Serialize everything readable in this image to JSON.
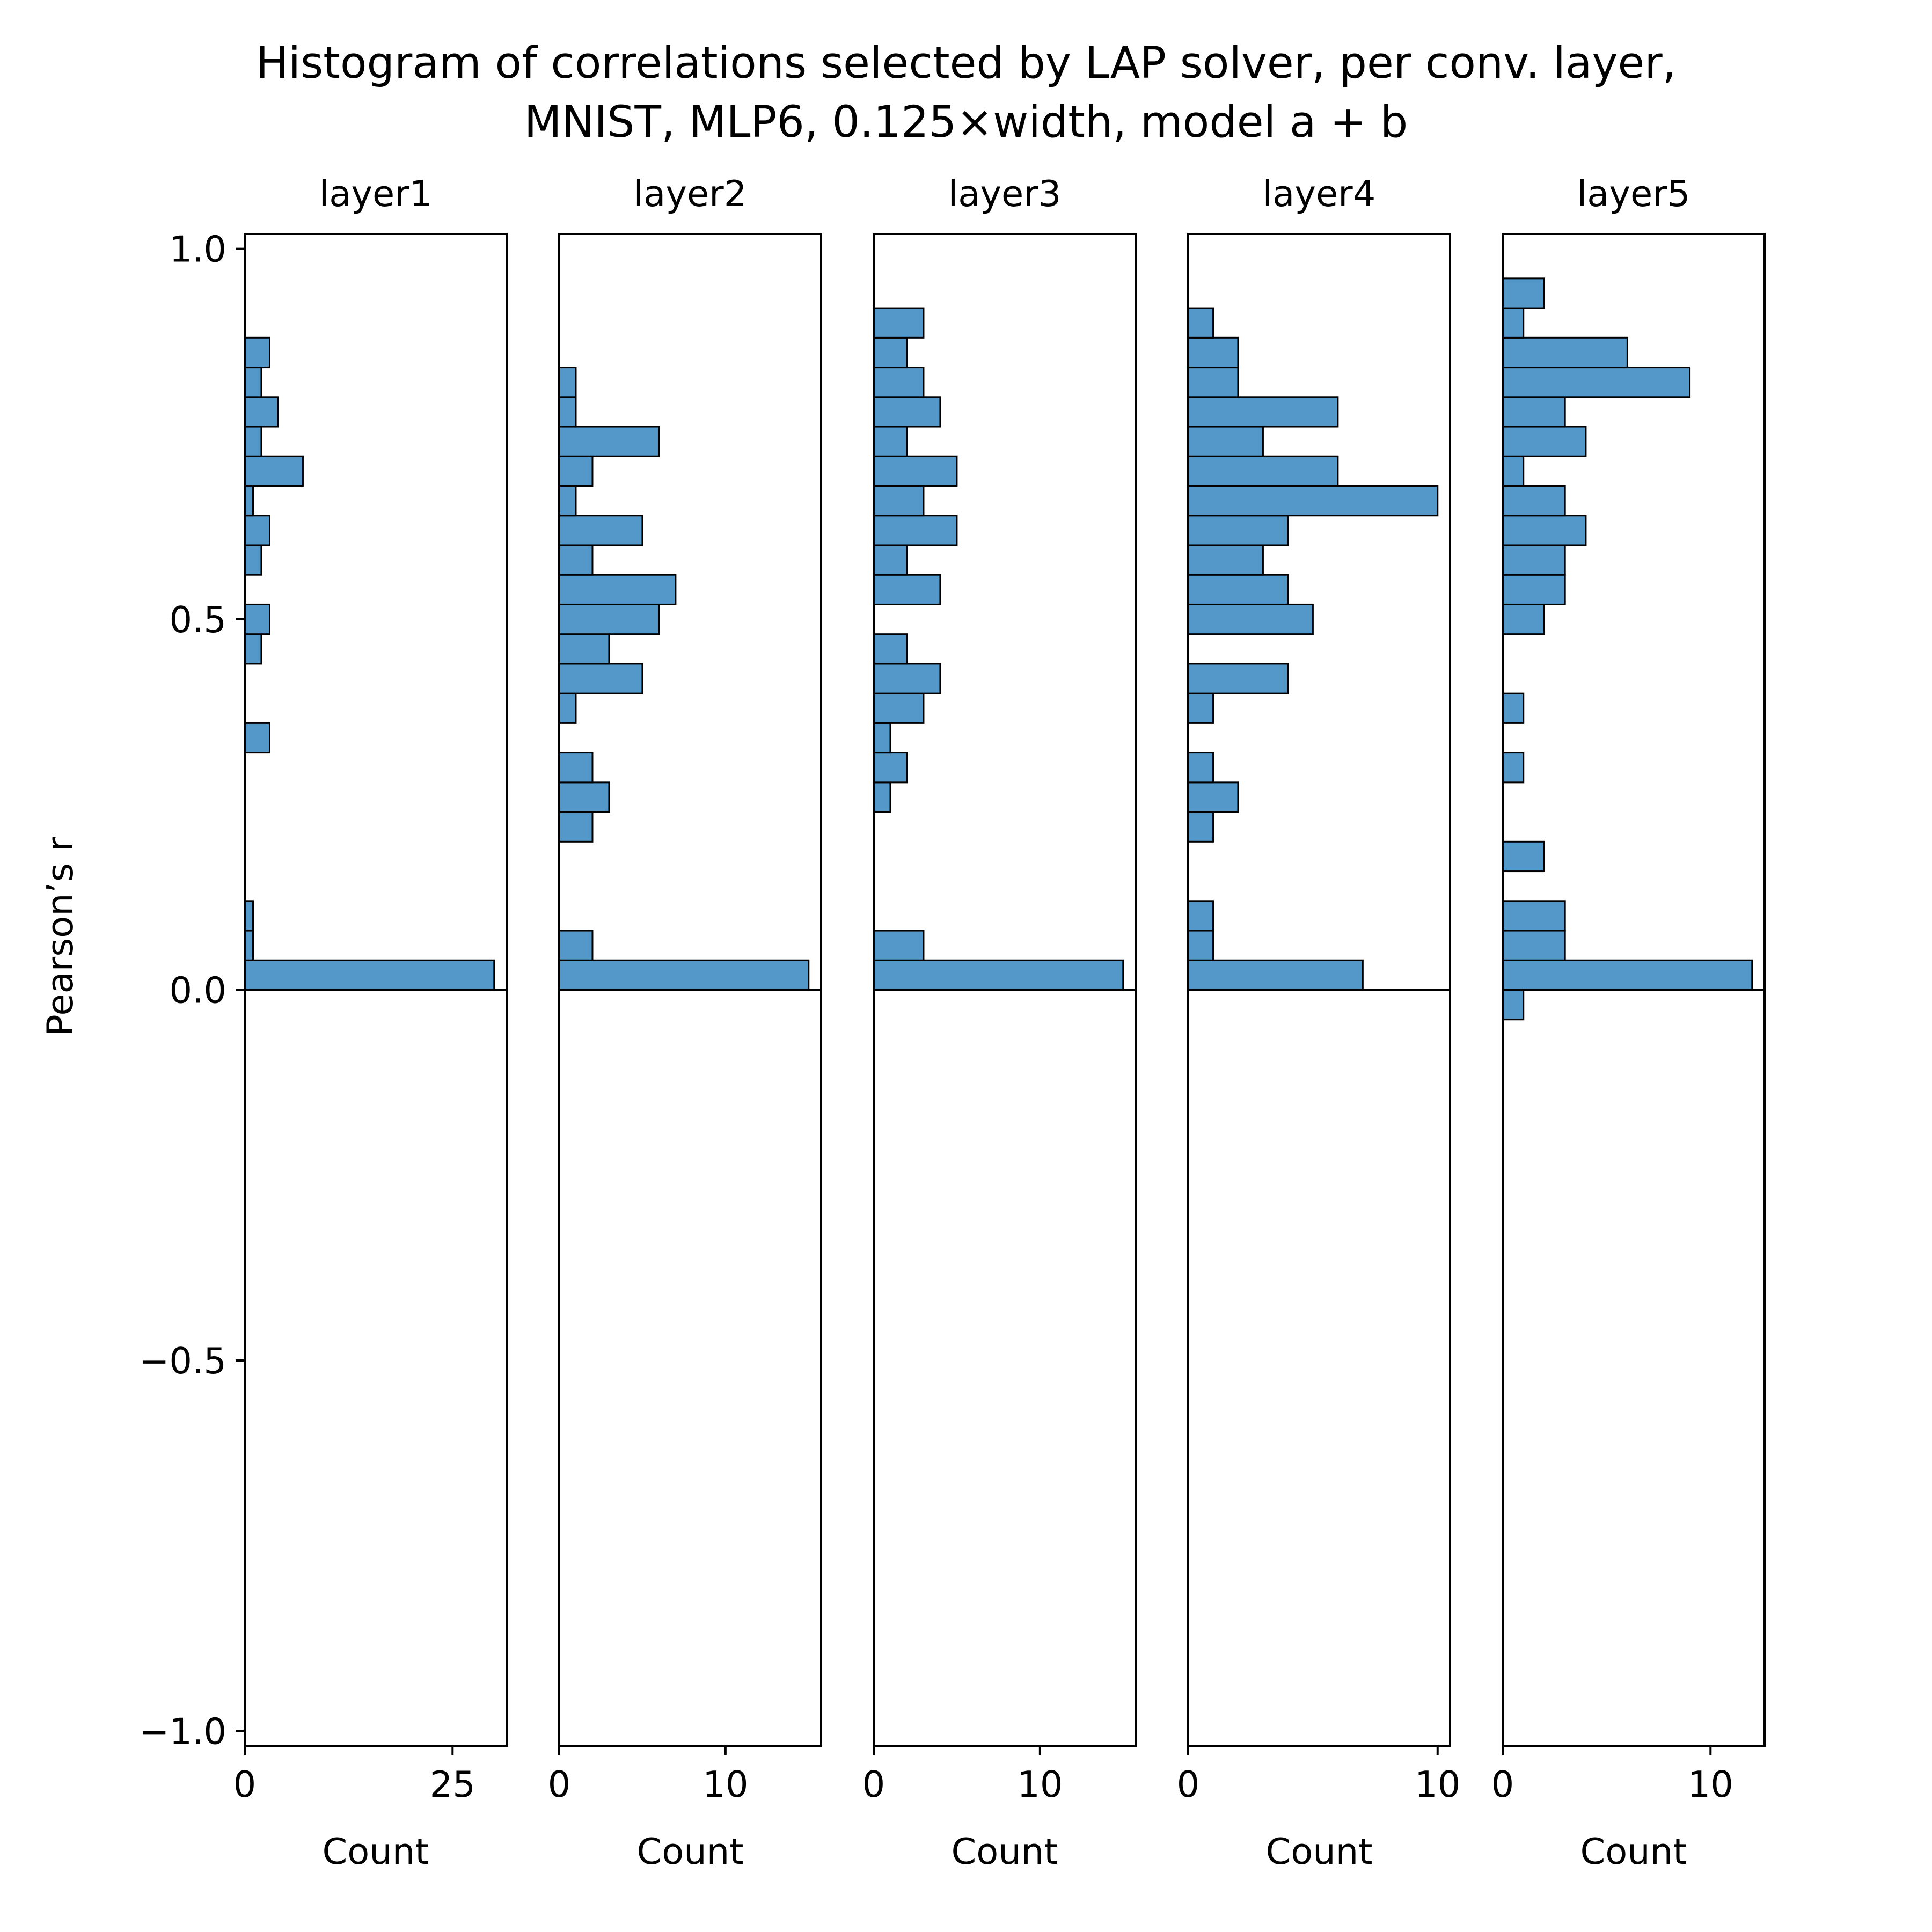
{
  "chart_data": {
    "type": "bar",
    "orientation": "horizontal",
    "title_lines": [
      "Histogram of correlations selected by LAP solver, per conv. layer,",
      "MNIST, MLP6, 0.125×width, model a + b"
    ],
    "ylabel": "Pearson’s r",
    "xlabel": "Count",
    "ylim": [
      -1.02,
      1.02
    ],
    "yticks": [
      1.0,
      0.5,
      0.0,
      -0.5,
      -1.0
    ],
    "ytick_labels": [
      "1.0",
      "0.5",
      "0.0",
      "−0.5",
      "−1.0"
    ],
    "bin_width": 0.04,
    "bar_color": "#5497c9",
    "edge_color": "#000000",
    "grid": false,
    "panels": [
      {
        "title": "layer1",
        "xlim": [
          0,
          31.5
        ],
        "xticks": [
          0,
          25
        ],
        "xtick_labels": [
          "0",
          "25"
        ],
        "bins": [
          {
            "y": 0.0,
            "count": 30
          },
          {
            "y": 0.04,
            "count": 1
          },
          {
            "y": 0.08,
            "count": 1
          },
          {
            "y": 0.32,
            "count": 3
          },
          {
            "y": 0.44,
            "count": 2
          },
          {
            "y": 0.48,
            "count": 3
          },
          {
            "y": 0.56,
            "count": 2
          },
          {
            "y": 0.6,
            "count": 3
          },
          {
            "y": 0.64,
            "count": 1
          },
          {
            "y": 0.68,
            "count": 7
          },
          {
            "y": 0.72,
            "count": 2
          },
          {
            "y": 0.76,
            "count": 4
          },
          {
            "y": 0.8,
            "count": 2
          },
          {
            "y": 0.84,
            "count": 3
          }
        ]
      },
      {
        "title": "layer2",
        "xlim": [
          0,
          15.75
        ],
        "xticks": [
          0,
          10
        ],
        "xtick_labels": [
          "0",
          "10"
        ],
        "bins": [
          {
            "y": 0.0,
            "count": 15
          },
          {
            "y": 0.04,
            "count": 2
          },
          {
            "y": 0.2,
            "count": 2
          },
          {
            "y": 0.24,
            "count": 3
          },
          {
            "y": 0.28,
            "count": 2
          },
          {
            "y": 0.36,
            "count": 1
          },
          {
            "y": 0.4,
            "count": 5
          },
          {
            "y": 0.44,
            "count": 3
          },
          {
            "y": 0.48,
            "count": 6
          },
          {
            "y": 0.52,
            "count": 7
          },
          {
            "y": 0.56,
            "count": 2
          },
          {
            "y": 0.6,
            "count": 5
          },
          {
            "y": 0.64,
            "count": 1
          },
          {
            "y": 0.68,
            "count": 2
          },
          {
            "y": 0.72,
            "count": 6
          },
          {
            "y": 0.76,
            "count": 1
          },
          {
            "y": 0.8,
            "count": 1
          }
        ]
      },
      {
        "title": "layer3",
        "xlim": [
          0,
          15.75
        ],
        "xticks": [
          0,
          10
        ],
        "xtick_labels": [
          "0",
          "10"
        ],
        "bins": [
          {
            "y": 0.0,
            "count": 15
          },
          {
            "y": 0.04,
            "count": 3
          },
          {
            "y": 0.24,
            "count": 1
          },
          {
            "y": 0.28,
            "count": 2
          },
          {
            "y": 0.32,
            "count": 1
          },
          {
            "y": 0.36,
            "count": 3
          },
          {
            "y": 0.4,
            "count": 4
          },
          {
            "y": 0.44,
            "count": 2
          },
          {
            "y": 0.52,
            "count": 4
          },
          {
            "y": 0.56,
            "count": 2
          },
          {
            "y": 0.6,
            "count": 5
          },
          {
            "y": 0.64,
            "count": 3
          },
          {
            "y": 0.68,
            "count": 5
          },
          {
            "y": 0.72,
            "count": 2
          },
          {
            "y": 0.76,
            "count": 4
          },
          {
            "y": 0.8,
            "count": 3
          },
          {
            "y": 0.84,
            "count": 2
          },
          {
            "y": 0.88,
            "count": 3
          }
        ]
      },
      {
        "title": "layer4",
        "xlim": [
          0,
          10.5
        ],
        "xticks": [
          0,
          10
        ],
        "xtick_labels": [
          "0",
          "10"
        ],
        "bins": [
          {
            "y": 0.0,
            "count": 7
          },
          {
            "y": 0.04,
            "count": 1
          },
          {
            "y": 0.08,
            "count": 1
          },
          {
            "y": 0.2,
            "count": 1
          },
          {
            "y": 0.24,
            "count": 2
          },
          {
            "y": 0.28,
            "count": 1
          },
          {
            "y": 0.36,
            "count": 1
          },
          {
            "y": 0.4,
            "count": 4
          },
          {
            "y": 0.48,
            "count": 5
          },
          {
            "y": 0.52,
            "count": 4
          },
          {
            "y": 0.56,
            "count": 3
          },
          {
            "y": 0.6,
            "count": 4
          },
          {
            "y": 0.64,
            "count": 10
          },
          {
            "y": 0.68,
            "count": 6
          },
          {
            "y": 0.72,
            "count": 3
          },
          {
            "y": 0.76,
            "count": 6
          },
          {
            "y": 0.8,
            "count": 2
          },
          {
            "y": 0.84,
            "count": 2
          },
          {
            "y": 0.88,
            "count": 1
          }
        ]
      },
      {
        "title": "layer5",
        "xlim": [
          0,
          12.6
        ],
        "xticks": [
          0,
          10
        ],
        "xtick_labels": [
          "0",
          "10"
        ],
        "bins": [
          {
            "y": -0.04,
            "count": 1
          },
          {
            "y": 0.0,
            "count": 12
          },
          {
            "y": 0.04,
            "count": 3
          },
          {
            "y": 0.08,
            "count": 3
          },
          {
            "y": 0.16,
            "count": 2
          },
          {
            "y": 0.28,
            "count": 1
          },
          {
            "y": 0.36,
            "count": 1
          },
          {
            "y": 0.48,
            "count": 2
          },
          {
            "y": 0.52,
            "count": 3
          },
          {
            "y": 0.56,
            "count": 3
          },
          {
            "y": 0.6,
            "count": 4
          },
          {
            "y": 0.64,
            "count": 3
          },
          {
            "y": 0.68,
            "count": 1
          },
          {
            "y": 0.72,
            "count": 4
          },
          {
            "y": 0.76,
            "count": 3
          },
          {
            "y": 0.8,
            "count": 9
          },
          {
            "y": 0.84,
            "count": 6
          },
          {
            "y": 0.88,
            "count": 1
          },
          {
            "y": 0.92,
            "count": 2
          }
        ]
      }
    ]
  }
}
